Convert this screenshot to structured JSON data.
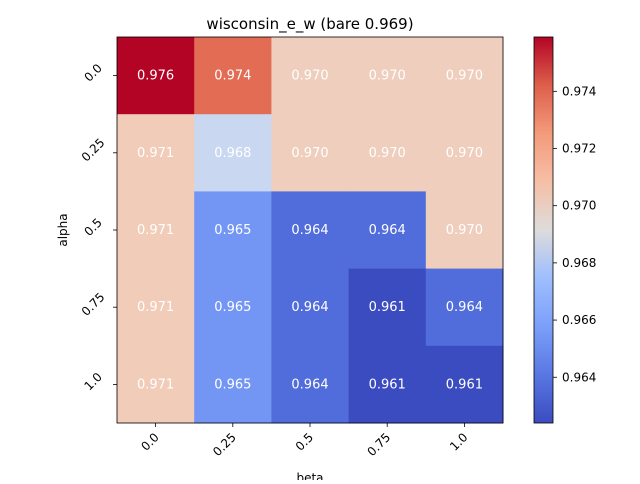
{
  "chart_data": {
    "type": "heatmap",
    "title": "wisconsin_e_w (bare 0.969)",
    "xlabel": "beta",
    "ylabel": "alpha",
    "x_categories": [
      "0.0",
      "0.25",
      "0.5",
      "0.75",
      "1.0"
    ],
    "y_categories": [
      "0.0",
      "0.25",
      "0.5",
      "0.75",
      "1.0"
    ],
    "values": [
      [
        0.976,
        0.974,
        0.97,
        0.97,
        0.97
      ],
      [
        0.971,
        0.968,
        0.97,
        0.97,
        0.97
      ],
      [
        0.971,
        0.965,
        0.964,
        0.964,
        0.97
      ],
      [
        0.971,
        0.965,
        0.964,
        0.961,
        0.964
      ],
      [
        0.971,
        0.965,
        0.964,
        0.961,
        0.961
      ]
    ],
    "value_labels": [
      [
        "0.976",
        "0.974",
        "0.970",
        "0.970",
        "0.970"
      ],
      [
        "0.971",
        "0.968",
        "0.970",
        "0.970",
        "0.970"
      ],
      [
        "0.971",
        "0.965",
        "0.964",
        "0.964",
        "0.970"
      ],
      [
        "0.971",
        "0.965",
        "0.964",
        "0.961",
        "0.964"
      ],
      [
        "0.971",
        "0.965",
        "0.964",
        "0.961",
        "0.961"
      ]
    ],
    "colormap": "coolwarm",
    "vmin": 0.9624,
    "vmax": 0.9759,
    "colorbar_ticks": [
      0.964,
      0.966,
      0.968,
      0.97,
      0.972,
      0.974
    ],
    "colorbar_tick_labels": [
      "0.964",
      "0.966",
      "0.968",
      "0.970",
      "0.972",
      "0.974"
    ],
    "cell_colors": [
      [
        "#b40426",
        "#e36c55",
        "#efcebd",
        "#efcebd",
        "#efcebd"
      ],
      [
        "#f1ccb8",
        "#c9d7f0",
        "#efcebd",
        "#efcebd",
        "#efcebd"
      ],
      [
        "#f1ccb8",
        "#7396f5",
        "#516ddb",
        "#516ddb",
        "#efcebd"
      ],
      [
        "#f1ccb8",
        "#7396f5",
        "#516ddb",
        "#3b4cc0",
        "#516ddb"
      ],
      [
        "#f1ccb8",
        "#7396f5",
        "#516ddb",
        "#3b4cc0",
        "#3b4cc0"
      ]
    ]
  }
}
